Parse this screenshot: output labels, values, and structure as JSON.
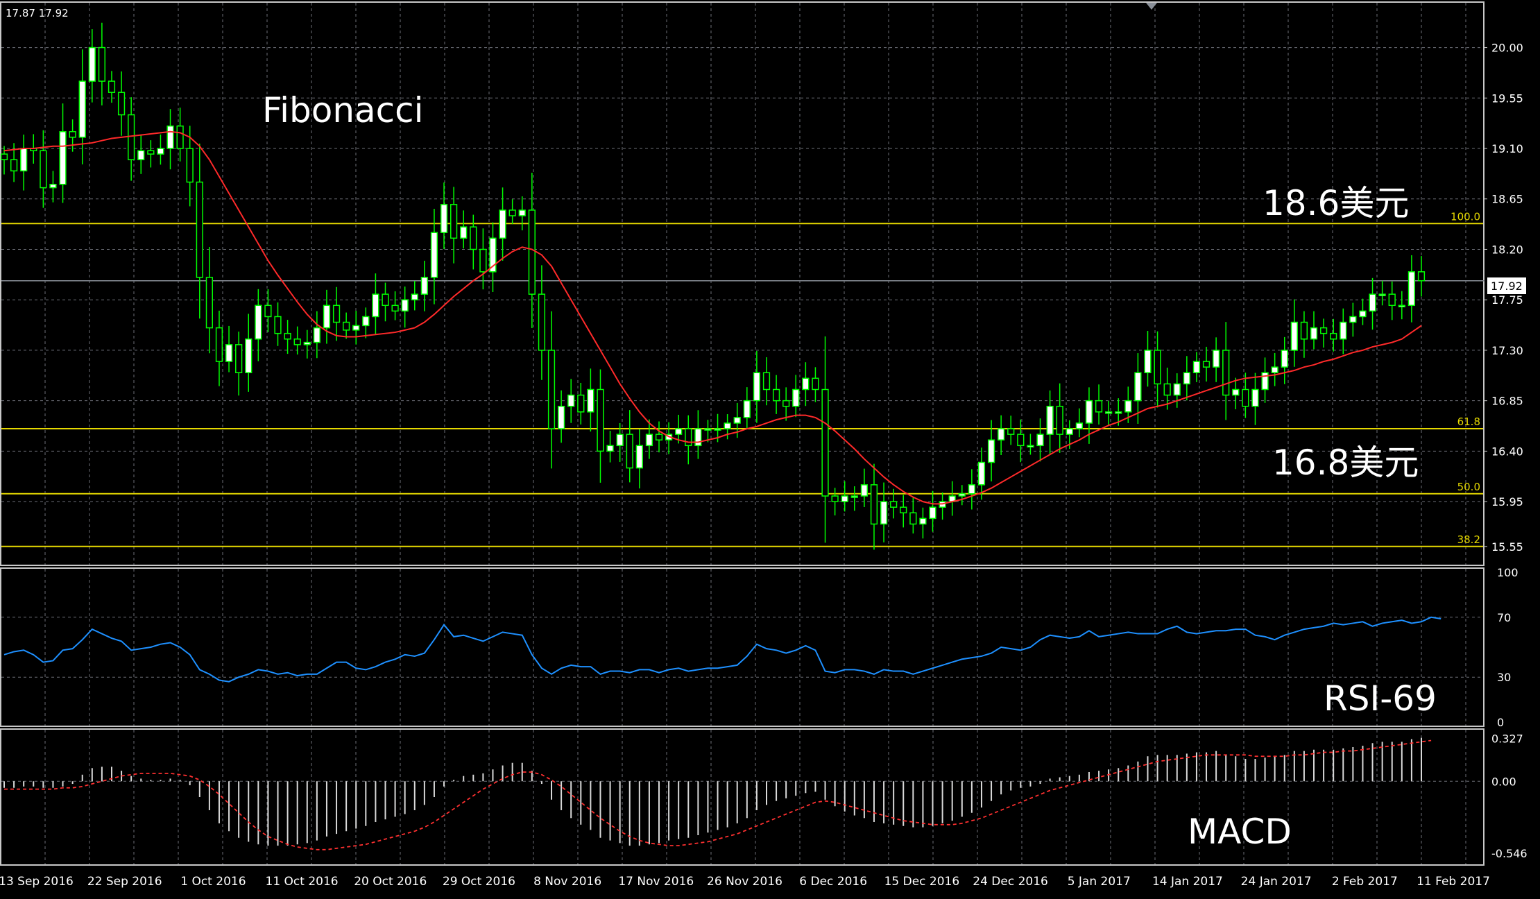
{
  "ohlc_readout": "17.87 17.92",
  "colors": {
    "background": "#000000",
    "grid": "#6e7079",
    "candle": "#00ff00",
    "candle_body": "#ffffff",
    "ma": "#ff2a2a",
    "fib": "#e5d800",
    "rsi": "#1e90ff",
    "macd_hist": "#d9d9d9",
    "macd_signal": "#ff3030",
    "price_line": "#8a9099",
    "axis_text": "#ffffff"
  },
  "chart_data": [
    {
      "type": "candlestick",
      "title": "",
      "annotations": [
        "Fibonacci",
        "18.6美元",
        "16.8美元"
      ],
      "ylim": [
        15.4,
        20.35
      ],
      "y_ticks": [
        "20.00",
        "19.55",
        "19.10",
        "18.65",
        "18.20",
        "17.75",
        "17.30",
        "16.85",
        "16.40",
        "15.95",
        "15.55"
      ],
      "current_price": "17.92",
      "x_labels": [
        "13 Sep 2016",
        "22 Sep 2016",
        "1 Oct 2016",
        "11 Oct 2016",
        "20 Oct 2016",
        "29 Oct 2016",
        "8 Nov 2016",
        "17 Nov 2016",
        "26 Nov 2016",
        "6 Dec 2016",
        "15 Dec 2016",
        "24 Dec 2016",
        "5 Jan 2017",
        "14 Jan 2017",
        "24 Jan 2017",
        "2 Feb 2017",
        "11 Feb 2017"
      ],
      "fib_levels": [
        {
          "label": "100.0",
          "value": 18.43
        },
        {
          "label": "61.8",
          "value": 16.6
        },
        {
          "label": "50.0",
          "value": 16.02
        },
        {
          "label": "38.2",
          "value": 15.55
        }
      ],
      "series": [
        {
          "close": [
            19.0,
            18.9,
            19.1,
            19.08,
            18.75,
            18.78,
            19.25,
            19.2,
            19.7,
            20.0,
            19.7,
            19.6,
            19.4,
            19.0,
            19.08,
            19.05,
            19.1,
            19.3,
            19.1,
            18.8,
            17.95,
            17.5,
            17.2,
            17.35,
            17.1,
            17.4,
            17.7,
            17.6,
            17.45,
            17.4,
            17.35,
            17.37,
            17.5,
            17.7,
            17.55,
            17.48,
            17.52,
            17.6,
            17.8,
            17.7,
            17.65,
            17.75,
            17.8,
            17.95,
            18.35,
            18.6,
            18.3,
            18.4,
            18.2,
            18.0,
            18.3,
            18.55,
            18.5,
            18.55,
            17.8,
            17.3,
            16.6,
            16.8,
            16.9,
            16.75,
            16.95,
            16.4,
            16.45,
            16.55,
            16.25,
            16.45,
            16.55,
            16.5,
            16.55,
            16.6,
            16.45,
            16.6,
            16.6,
            16.6,
            16.65,
            16.7,
            16.85,
            17.1,
            16.95,
            16.85,
            16.8,
            16.95,
            17.05,
            16.95,
            16.0,
            15.95,
            16.0,
            16.0,
            16.1,
            15.75,
            15.95,
            15.9,
            15.85,
            15.75,
            15.8,
            15.9,
            15.95,
            16.0,
            16.02,
            16.1,
            16.3,
            16.5,
            16.6,
            16.55,
            16.45,
            16.45,
            16.55,
            16.8,
            16.55,
            16.6,
            16.65,
            16.85,
            16.75,
            16.75,
            16.75,
            16.85,
            17.1,
            17.3,
            17.0,
            16.9,
            17.0,
            17.1,
            17.2,
            17.15,
            17.3,
            16.9,
            16.95,
            16.8,
            16.95,
            17.1,
            17.15,
            17.3,
            17.55,
            17.4,
            17.5,
            17.45,
            17.4,
            17.55,
            17.6,
            17.65,
            17.8,
            17.8,
            17.7,
            17.7,
            18.0,
            17.92
          ]
        }
      ],
      "ma": [
        19.08,
        19.09,
        19.1,
        19.1,
        19.11,
        19.12,
        19.12,
        19.13,
        19.14,
        19.15,
        19.17,
        19.19,
        19.2,
        19.21,
        19.22,
        19.23,
        19.24,
        19.25,
        19.24,
        19.2,
        19.12,
        19.0,
        18.85,
        18.7,
        18.55,
        18.4,
        18.25,
        18.1,
        17.97,
        17.85,
        17.73,
        17.62,
        17.53,
        17.47,
        17.43,
        17.42,
        17.42,
        17.43,
        17.44,
        17.45,
        17.46,
        17.48,
        17.5,
        17.55,
        17.62,
        17.7,
        17.78,
        17.85,
        17.92,
        17.98,
        18.05,
        18.12,
        18.18,
        18.22,
        18.2,
        18.15,
        18.05,
        17.9,
        17.75,
        17.6,
        17.45,
        17.3,
        17.15,
        17.0,
        16.87,
        16.75,
        16.65,
        16.58,
        16.53,
        16.5,
        16.48,
        16.48,
        16.5,
        16.52,
        16.55,
        16.57,
        16.6,
        16.62,
        16.65,
        16.68,
        16.7,
        16.72,
        16.72,
        16.7,
        16.65,
        16.58,
        16.5,
        16.42,
        16.33,
        16.25,
        16.17,
        16.1,
        16.04,
        15.99,
        15.95,
        15.93,
        15.93,
        15.95,
        15.97,
        16.0,
        16.03,
        16.07,
        16.12,
        16.17,
        16.22,
        16.27,
        16.32,
        16.37,
        16.42,
        16.46,
        16.5,
        16.55,
        16.59,
        16.63,
        16.66,
        16.7,
        16.74,
        16.78,
        16.8,
        16.82,
        16.85,
        16.88,
        16.91,
        16.94,
        16.97,
        17.0,
        17.03,
        17.05,
        17.06,
        17.07,
        17.08,
        17.1,
        17.12,
        17.15,
        17.17,
        17.2,
        17.22,
        17.25,
        17.28,
        17.3,
        17.33,
        17.35,
        17.37,
        17.4,
        17.46,
        17.52
      ]
    },
    {
      "type": "line",
      "label": "RSI-69",
      "ylim": [
        0,
        100
      ],
      "y_ticks": [
        "100",
        "70",
        "30",
        "0"
      ],
      "values": [
        45,
        47,
        48,
        45,
        40,
        41,
        48,
        49,
        55,
        62,
        59,
        56,
        54,
        48,
        49,
        50,
        52,
        53,
        50,
        45,
        35,
        32,
        28,
        27,
        30,
        32,
        35,
        34,
        32,
        33,
        31,
        32,
        32,
        36,
        40,
        40,
        36,
        35,
        37,
        40,
        42,
        45,
        44,
        46,
        55,
        65,
        57,
        58,
        56,
        54,
        57,
        60,
        59,
        58,
        45,
        36,
        32,
        36,
        38,
        37,
        37,
        32,
        34,
        34,
        33,
        35,
        35,
        33,
        35,
        36,
        34,
        35,
        36,
        36,
        37,
        38,
        44,
        52,
        49,
        48,
        46,
        48,
        51,
        48,
        34,
        33,
        35,
        35,
        34,
        32,
        35,
        34,
        34,
        32,
        34,
        36,
        38,
        40,
        42,
        43,
        44,
        46,
        50,
        49,
        48,
        50,
        55,
        58,
        57,
        56,
        57,
        61,
        57,
        58,
        59,
        60,
        59,
        59,
        59,
        62,
        64,
        60,
        59,
        60,
        61,
        61,
        62,
        62,
        58,
        57,
        55,
        58,
        60,
        62,
        63,
        64,
        66,
        65,
        66,
        67,
        64,
        66,
        67,
        68,
        66,
        67,
        70,
        69
      ]
    },
    {
      "type": "histogram_line",
      "label": "MACD",
      "ylim": [
        -0.6,
        0.36
      ],
      "y_ticks": [
        "0.327",
        "0.00",
        "-0.546"
      ],
      "histogram": [
        -0.05,
        -0.05,
        -0.04,
        -0.04,
        -0.05,
        -0.05,
        -0.04,
        -0.02,
        0.05,
        0.1,
        0.11,
        0.11,
        0.08,
        0.04,
        0.02,
        0.01,
        0.01,
        0.02,
        0.01,
        -0.03,
        -0.12,
        -0.22,
        -0.32,
        -0.38,
        -0.43,
        -0.46,
        -0.48,
        -0.49,
        -0.49,
        -0.49,
        -0.48,
        -0.47,
        -0.45,
        -0.42,
        -0.4,
        -0.38,
        -0.36,
        -0.34,
        -0.31,
        -0.29,
        -0.27,
        -0.25,
        -0.22,
        -0.18,
        -0.12,
        -0.04,
        0.01,
        0.04,
        0.05,
        0.06,
        0.09,
        0.12,
        0.14,
        0.14,
        0.08,
        -0.02,
        -0.14,
        -0.22,
        -0.28,
        -0.33,
        -0.37,
        -0.43,
        -0.45,
        -0.47,
        -0.49,
        -0.49,
        -0.48,
        -0.47,
        -0.45,
        -0.44,
        -0.43,
        -0.41,
        -0.39,
        -0.37,
        -0.35,
        -0.32,
        -0.28,
        -0.22,
        -0.18,
        -0.15,
        -0.13,
        -0.11,
        -0.09,
        -0.08,
        -0.14,
        -0.19,
        -0.23,
        -0.26,
        -0.28,
        -0.31,
        -0.32,
        -0.33,
        -0.34,
        -0.35,
        -0.35,
        -0.34,
        -0.32,
        -0.3,
        -0.27,
        -0.24,
        -0.2,
        -0.15,
        -0.1,
        -0.07,
        -0.05,
        -0.04,
        -0.02,
        0.02,
        0.03,
        0.04,
        0.05,
        0.07,
        0.08,
        0.09,
        0.1,
        0.12,
        0.15,
        0.19,
        0.2,
        0.2,
        0.2,
        0.21,
        0.22,
        0.22,
        0.23,
        0.2,
        0.19,
        0.17,
        0.17,
        0.18,
        0.19,
        0.2,
        0.23,
        0.23,
        0.24,
        0.24,
        0.24,
        0.25,
        0.26,
        0.27,
        0.29,
        0.3,
        0.3,
        0.3,
        0.32,
        0.33
      ],
      "signal": [
        -0.06,
        -0.06,
        -0.06,
        -0.06,
        -0.06,
        -0.06,
        -0.05,
        -0.05,
        -0.04,
        -0.02,
        0.0,
        0.02,
        0.04,
        0.05,
        0.06,
        0.06,
        0.06,
        0.06,
        0.05,
        0.04,
        0.01,
        -0.04,
        -0.1,
        -0.17,
        -0.24,
        -0.31,
        -0.37,
        -0.42,
        -0.45,
        -0.48,
        -0.5,
        -0.51,
        -0.52,
        -0.52,
        -0.51,
        -0.5,
        -0.49,
        -0.48,
        -0.46,
        -0.44,
        -0.42,
        -0.4,
        -0.38,
        -0.35,
        -0.31,
        -0.26,
        -0.21,
        -0.16,
        -0.11,
        -0.06,
        -0.02,
        0.02,
        0.05,
        0.07,
        0.07,
        0.05,
        0.01,
        -0.04,
        -0.1,
        -0.16,
        -0.22,
        -0.28,
        -0.33,
        -0.38,
        -0.42,
        -0.45,
        -0.47,
        -0.48,
        -0.49,
        -0.49,
        -0.48,
        -0.47,
        -0.46,
        -0.44,
        -0.42,
        -0.4,
        -0.37,
        -0.34,
        -0.31,
        -0.28,
        -0.25,
        -0.22,
        -0.19,
        -0.16,
        -0.15,
        -0.16,
        -0.18,
        -0.2,
        -0.22,
        -0.24,
        -0.26,
        -0.28,
        -0.3,
        -0.31,
        -0.32,
        -0.33,
        -0.33,
        -0.33,
        -0.32,
        -0.3,
        -0.28,
        -0.25,
        -0.22,
        -0.19,
        -0.16,
        -0.13,
        -0.1,
        -0.07,
        -0.05,
        -0.03,
        -0.01,
        0.01,
        0.03,
        0.05,
        0.07,
        0.09,
        0.11,
        0.13,
        0.15,
        0.16,
        0.17,
        0.18,
        0.19,
        0.2,
        0.2,
        0.2,
        0.2,
        0.2,
        0.19,
        0.19,
        0.19,
        0.19,
        0.2,
        0.2,
        0.21,
        0.22,
        0.22,
        0.23,
        0.23,
        0.24,
        0.25,
        0.26,
        0.27,
        0.28,
        0.29,
        0.3,
        0.31
      ]
    }
  ]
}
